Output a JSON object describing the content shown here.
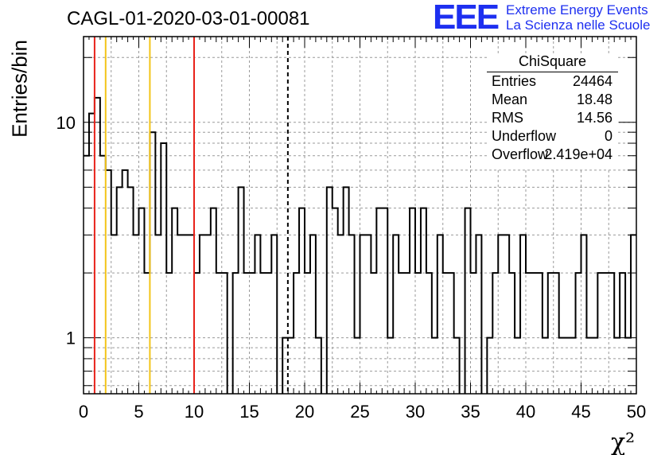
{
  "title": "CAGL-01-2020-03-01-00081",
  "logo": {
    "mark": "EEE",
    "line1": "Extreme Energy Events",
    "line2": "La Scienza nelle Scuole"
  },
  "stats_box": {
    "name": "ChiSquare",
    "rows": [
      {
        "label": "Entries",
        "value": "24464"
      },
      {
        "label": "Mean",
        "value": "18.48"
      },
      {
        "label": "RMS",
        "value": "14.56"
      },
      {
        "label": "Underflow",
        "value": "0"
      },
      {
        "label": "Overflow",
        "value": "2.419e+04"
      }
    ]
  },
  "chart_data": {
    "type": "histogram",
    "title": "CAGL-01-2020-03-01-00081",
    "xlabel": "χ²",
    "ylabel": "Entries/bin",
    "xlim": [
      0,
      50
    ],
    "ylim": [
      0.55,
      25
    ],
    "log_y": true,
    "grid": true,
    "x_ticks": [
      "0",
      "5",
      "10",
      "15",
      "20",
      "25",
      "30",
      "35",
      "40",
      "45",
      "50"
    ],
    "y_ticks": [
      "1",
      "10"
    ],
    "bin_width": 0.5,
    "counts": [
      7,
      11,
      13,
      7,
      6,
      3,
      5,
      6,
      5,
      3,
      4,
      2,
      9,
      3,
      8,
      2,
      4,
      3,
      3,
      3,
      2,
      3,
      3,
      4,
      2,
      2,
      0,
      2,
      5,
      2,
      2,
      3,
      2,
      2,
      3,
      0,
      1,
      1,
      2,
      4,
      2,
      3,
      1,
      0,
      5,
      4,
      3,
      5,
      3,
      1,
      3,
      3,
      2,
      4,
      4,
      1,
      3,
      2,
      2,
      4,
      2,
      4,
      2,
      1,
      3,
      2,
      2,
      1,
      0,
      4,
      2,
      3,
      0,
      1,
      2,
      3,
      3,
      2,
      1,
      3,
      2,
      2,
      2,
      1,
      2,
      2,
      1,
      1,
      1,
      2,
      3,
      1,
      1,
      2,
      2,
      2,
      1,
      2,
      1,
      3
    ],
    "vertical_lines": [
      {
        "x": 1,
        "color": "#e8221a",
        "style": "solid"
      },
      {
        "x": 2,
        "color": "#f3c418",
        "style": "solid"
      },
      {
        "x": 6,
        "color": "#f3c418",
        "style": "solid"
      },
      {
        "x": 10,
        "color": "#e8221a",
        "style": "solid"
      },
      {
        "x": 18.48,
        "color": "#000000",
        "style": "dashed"
      }
    ]
  }
}
